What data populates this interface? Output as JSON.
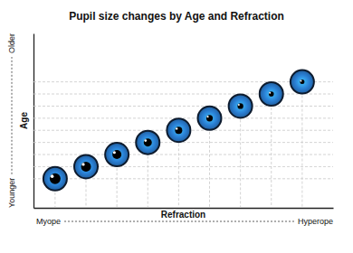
{
  "chart_data": {
    "type": "scatter",
    "title": "Pupil size changes by Age and Refraction",
    "xlabel": "Refraction",
    "ylabel": "Age",
    "annotations": [
      "Myope",
      "Hyperope",
      "Younger",
      "Older"
    ],
    "x": [
      1,
      2,
      3,
      4,
      5,
      6,
      7,
      8,
      9
    ],
    "values": [
      2.4,
      3.4,
      4.4,
      5.4,
      6.4,
      7.4,
      8.4,
      9.4,
      10.4
    ],
    "pupil_size": [
      6,
      5.5,
      5,
      4.5,
      4,
      3.6,
      3.2,
      2.8,
      2.5
    ],
    "xlim": [
      0.3,
      10
    ],
    "ylim": [
      0,
      14.4
    ],
    "color": "#2a7fd4",
    "grid": true,
    "tick_labels": false,
    "marker": "eye"
  }
}
